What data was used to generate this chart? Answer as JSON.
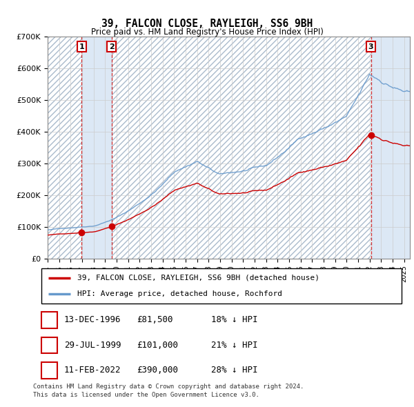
{
  "title": "39, FALCON CLOSE, RAYLEIGH, SS6 9BH",
  "subtitle": "Price paid vs. HM Land Registry's House Price Index (HPI)",
  "legend_line1": "39, FALCON CLOSE, RAYLEIGH, SS6 9BH (detached house)",
  "legend_line2": "HPI: Average price, detached house, Rochford",
  "footer1": "Contains HM Land Registry data © Crown copyright and database right 2024.",
  "footer2": "This data is licensed under the Open Government Licence v3.0.",
  "sale_color": "#cc0000",
  "hpi_color": "#6699cc",
  "sale_dates_num": [
    1996.95,
    1999.57,
    2022.11
  ],
  "sale_prices": [
    81500,
    101000,
    390000
  ],
  "sale_labels": [
    "1",
    "2",
    "3"
  ],
  "table": [
    [
      "1",
      "13-DEC-1996",
      "£81,500",
      "18% ↓ HPI"
    ],
    [
      "2",
      "29-JUL-1999",
      "£101,000",
      "21% ↓ HPI"
    ],
    [
      "3",
      "11-FEB-2022",
      "£390,000",
      "28% ↓ HPI"
    ]
  ],
  "xmin": 1994.0,
  "xmax": 2025.5,
  "ymin": 0,
  "ymax": 700000,
  "yticks": [
    0,
    100000,
    200000,
    300000,
    400000,
    500000,
    600000,
    700000
  ],
  "ytick_labels": [
    "£0",
    "£100K",
    "£200K",
    "£300K",
    "£400K",
    "£500K",
    "£600K",
    "£700K"
  ]
}
